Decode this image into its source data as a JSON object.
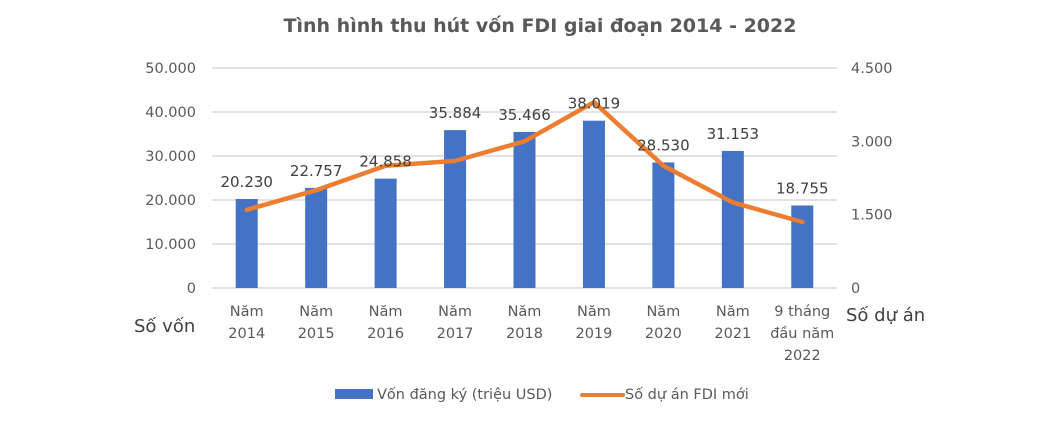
{
  "chart_data": {
    "type": "bar+line",
    "title": "Tình hình thu hút vốn FDI giai đoạn 2014 - 2022",
    "categories": [
      [
        "Năm",
        "2014"
      ],
      [
        "Năm",
        "2015"
      ],
      [
        "Năm",
        "2016"
      ],
      [
        "Năm",
        "2017"
      ],
      [
        "Năm",
        "2018"
      ],
      [
        "Năm",
        "2019"
      ],
      [
        "Năm",
        "2020"
      ],
      [
        "Năm",
        "2021"
      ],
      [
        "9 tháng",
        "đầu năm",
        "2022"
      ]
    ],
    "series": [
      {
        "name": "Vốn đăng ký (triệu USD)",
        "kind": "bar",
        "axis": "left",
        "color": "#4472C4",
        "values": [
          20230,
          22757,
          24858,
          35884,
          35466,
          38019,
          28530,
          31153,
          18755
        ],
        "labels": [
          "20.230",
          "22.757",
          "24.858",
          "35.884",
          "35.466",
          "38.019",
          "28.530",
          "31.153",
          "18.755"
        ]
      },
      {
        "name": "Số dự án FDI mới",
        "kind": "line",
        "axis": "right",
        "color": "#ED7D31",
        "values": [
          1600,
          2000,
          2500,
          2600,
          3000,
          3800,
          2500,
          1750,
          1350
        ]
      }
    ],
    "left_axis": {
      "label": "Số vốn",
      "range": [
        0,
        50000
      ],
      "ticks": [
        0,
        10000,
        20000,
        30000,
        40000,
        50000
      ],
      "tick_labels": [
        "0",
        "10.000",
        "20.000",
        "30.000",
        "40.000",
        "50.000"
      ]
    },
    "right_axis": {
      "label": "Số dự án",
      "range": [
        0,
        4500
      ],
      "ticks": [
        0,
        1500,
        3000,
        4500
      ],
      "tick_labels": [
        "0",
        "1.500",
        "3.000",
        "4.500"
      ]
    },
    "grid": true,
    "legend_position": "bottom",
    "colors": {
      "gridline": "#D9D9D9",
      "text": "#595959"
    }
  }
}
